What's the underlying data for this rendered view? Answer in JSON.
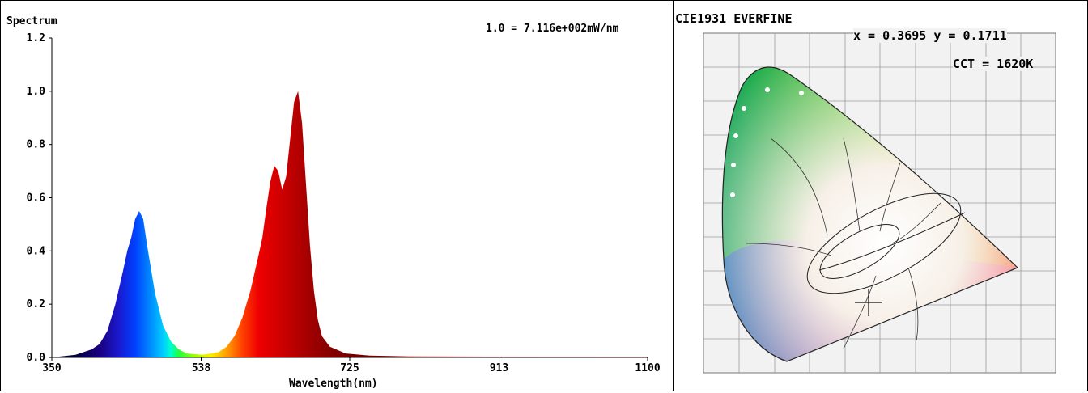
{
  "spectrum": {
    "title": "Spectrum",
    "scale_note": "1.0 = 7.116e+002mW/nm",
    "xlabel": "Wavelength(nm)"
  },
  "chart_data": {
    "type": "area",
    "title": "Spectrum",
    "xlabel": "Wavelength(nm)",
    "ylabel": "",
    "xlim": [
      350,
      1100
    ],
    "ylim": [
      0,
      1.2
    ],
    "x_ticks": [
      "350",
      "538",
      "725",
      "913",
      "1100"
    ],
    "y_ticks": [
      "0.0",
      "0.2",
      "0.4",
      "0.6",
      "0.8",
      "1.0",
      "1.2"
    ],
    "grid": false,
    "x": [
      350,
      380,
      390,
      400,
      410,
      420,
      430,
      440,
      445,
      450,
      455,
      460,
      465,
      470,
      480,
      490,
      500,
      510,
      520,
      540,
      560,
      570,
      580,
      590,
      600,
      610,
      615,
      620,
      625,
      630,
      635,
      640,
      645,
      650,
      655,
      660,
      665,
      670,
      675,
      680,
      685,
      690,
      700,
      720,
      750,
      800,
      900,
      1100
    ],
    "y": [
      0.0,
      0.01,
      0.02,
      0.03,
      0.05,
      0.1,
      0.2,
      0.33,
      0.4,
      0.45,
      0.52,
      0.55,
      0.52,
      0.42,
      0.24,
      0.12,
      0.06,
      0.03,
      0.015,
      0.01,
      0.02,
      0.04,
      0.08,
      0.15,
      0.25,
      0.38,
      0.45,
      0.56,
      0.66,
      0.72,
      0.7,
      0.63,
      0.68,
      0.82,
      0.96,
      1.0,
      0.88,
      0.65,
      0.42,
      0.25,
      0.14,
      0.08,
      0.04,
      0.015,
      0.007,
      0.004,
      0.003,
      0.003
    ]
  },
  "cie": {
    "header": "CIE1931   EVERFINE",
    "xy_readout": "x = 0.3695 y = 0.1711",
    "cct_readout": "CCT = 1620K",
    "marker": {
      "x": 0.3695,
      "y": 0.1711
    }
  }
}
